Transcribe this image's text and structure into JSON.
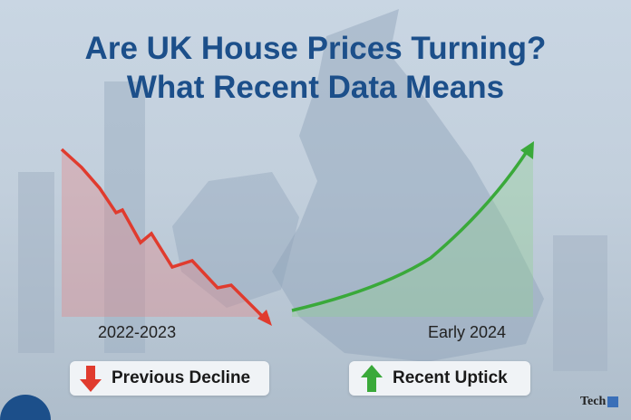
{
  "title": {
    "line1": "Are UK House Prices Turning?",
    "line2": "What Recent Data Means"
  },
  "labels": {
    "left_period": "2022-2023",
    "right_period": "Early 2024"
  },
  "badges": [
    {
      "label": "Previous Decline",
      "icon": "arrow-down-icon",
      "color": "#e03b2e"
    },
    {
      "label": "Recent Uptick",
      "icon": "arrow-up-icon",
      "color": "#3aa93a"
    }
  ],
  "colors": {
    "title": "#1c4f8a",
    "decline": "#e03b2e",
    "uptick": "#3aa93a"
  },
  "logo": {
    "text": "Tech"
  }
}
